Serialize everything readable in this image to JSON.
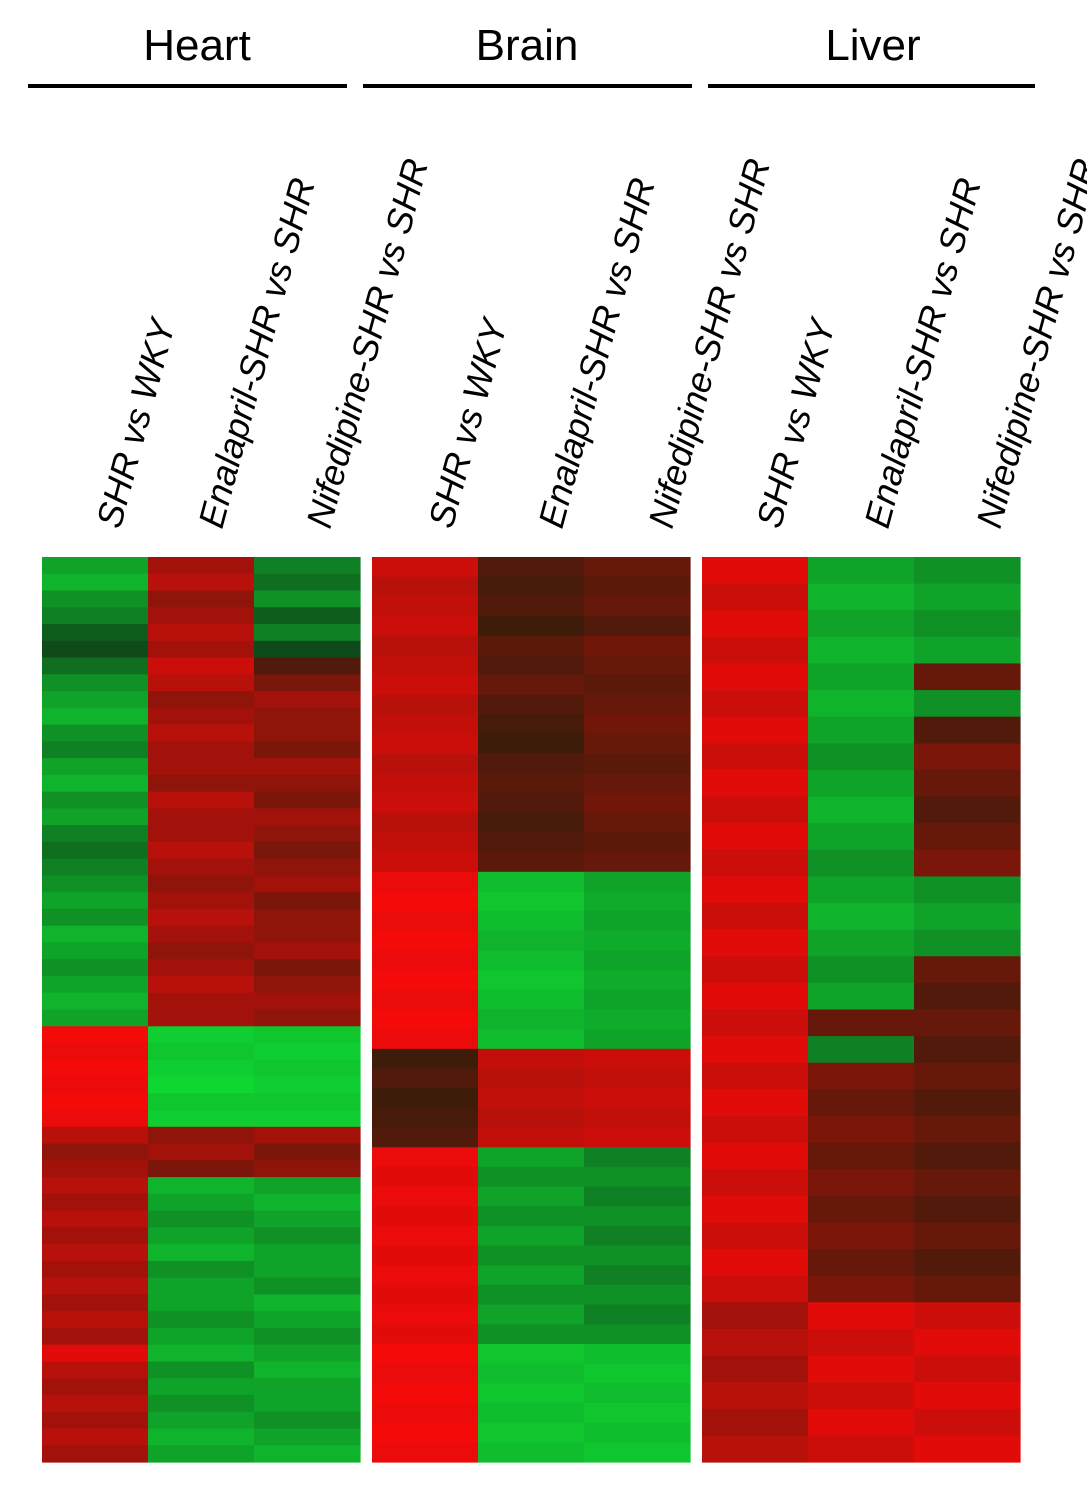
{
  "chart_data": {
    "type": "heatmap",
    "panels": [
      {
        "title": "Heart",
        "columns": [
          {
            "parts": [
              "SHR ",
              "vs",
              " WKY"
            ]
          },
          {
            "parts": [
              "Enalapril-SHR ",
              "vs",
              " SHR"
            ]
          },
          {
            "parts": [
              "Nifedipine-SHR ",
              "vs",
              " SHR"
            ]
          }
        ],
        "rows": [
          [
            -0.7,
            0.6,
            -0.5
          ],
          [
            -0.8,
            0.7,
            -0.4
          ],
          [
            -0.6,
            0.5,
            -0.6
          ],
          [
            -0.5,
            0.6,
            -0.3
          ],
          [
            -0.3,
            0.7,
            -0.5
          ],
          [
            -0.2,
            0.6,
            -0.2
          ],
          [
            -0.4,
            0.8,
            0.2
          ],
          [
            -0.6,
            0.7,
            0.4
          ],
          [
            -0.7,
            0.5,
            0.6
          ],
          [
            -0.8,
            0.6,
            0.5
          ],
          [
            -0.6,
            0.7,
            0.5
          ],
          [
            -0.5,
            0.6,
            0.4
          ],
          [
            -0.7,
            0.6,
            0.6
          ],
          [
            -0.8,
            0.5,
            0.5
          ],
          [
            -0.6,
            0.7,
            0.4
          ],
          [
            -0.7,
            0.6,
            0.6
          ],
          [
            -0.5,
            0.6,
            0.5
          ],
          [
            -0.4,
            0.7,
            0.4
          ],
          [
            -0.5,
            0.6,
            0.5
          ],
          [
            -0.6,
            0.5,
            0.6
          ],
          [
            -0.7,
            0.6,
            0.4
          ],
          [
            -0.6,
            0.7,
            0.5
          ],
          [
            -0.8,
            0.6,
            0.5
          ],
          [
            -0.7,
            0.5,
            0.6
          ],
          [
            -0.6,
            0.6,
            0.4
          ],
          [
            -0.7,
            0.7,
            0.5
          ],
          [
            -0.8,
            0.6,
            0.6
          ],
          [
            -0.7,
            0.6,
            0.5
          ],
          [
            1.0,
            -0.95,
            -0.9
          ],
          [
            0.95,
            -0.9,
            -0.95
          ],
          [
            1.0,
            -0.95,
            -0.9
          ],
          [
            0.95,
            -1.0,
            -0.95
          ],
          [
            1.0,
            -0.9,
            -0.9
          ],
          [
            0.95,
            -0.95,
            -0.95
          ],
          [
            0.7,
            0.5,
            0.6
          ],
          [
            0.5,
            0.6,
            0.4
          ],
          [
            0.6,
            0.4,
            0.5
          ],
          [
            0.7,
            -0.8,
            -0.7
          ],
          [
            0.6,
            -0.7,
            -0.8
          ],
          [
            0.7,
            -0.6,
            -0.7
          ],
          [
            0.6,
            -0.7,
            -0.6
          ],
          [
            0.7,
            -0.8,
            -0.7
          ],
          [
            0.6,
            -0.6,
            -0.7
          ],
          [
            0.7,
            -0.7,
            -0.6
          ],
          [
            0.6,
            -0.7,
            -0.8
          ],
          [
            0.7,
            -0.6,
            -0.7
          ],
          [
            0.6,
            -0.7,
            -0.6
          ],
          [
            0.9,
            -0.8,
            -0.7
          ],
          [
            0.7,
            -0.6,
            -0.8
          ],
          [
            0.6,
            -0.7,
            -0.7
          ],
          [
            0.7,
            -0.6,
            -0.7
          ],
          [
            0.6,
            -0.7,
            -0.6
          ],
          [
            0.7,
            -0.8,
            -0.7
          ],
          [
            0.6,
            -0.7,
            -0.8
          ]
        ]
      },
      {
        "title": "Brain",
        "columns": [
          {
            "parts": [
              "SHR ",
              "vs",
              " WKY"
            ]
          },
          {
            "parts": [
              "Enalapril-SHR ",
              "vs",
              " SHR"
            ]
          },
          {
            "parts": [
              "Nifedipine-SHR ",
              "vs",
              " SHR"
            ]
          }
        ],
        "rows": [
          [
            0.8,
            0.2,
            0.3
          ],
          [
            0.7,
            0.15,
            0.25
          ],
          [
            0.75,
            0.2,
            0.3
          ],
          [
            0.8,
            0.1,
            0.2
          ],
          [
            0.7,
            0.25,
            0.35
          ],
          [
            0.75,
            0.2,
            0.3
          ],
          [
            0.8,
            0.3,
            0.25
          ],
          [
            0.7,
            0.2,
            0.3
          ],
          [
            0.75,
            0.15,
            0.35
          ],
          [
            0.8,
            0.1,
            0.3
          ],
          [
            0.7,
            0.2,
            0.25
          ],
          [
            0.75,
            0.25,
            0.3
          ],
          [
            0.8,
            0.2,
            0.35
          ],
          [
            0.7,
            0.15,
            0.3
          ],
          [
            0.75,
            0.2,
            0.25
          ],
          [
            0.8,
            0.25,
            0.3
          ],
          [
            0.95,
            -0.85,
            -0.7
          ],
          [
            1.0,
            -0.9,
            -0.75
          ],
          [
            0.95,
            -0.85,
            -0.7
          ],
          [
            1.0,
            -0.8,
            -0.75
          ],
          [
            0.95,
            -0.85,
            -0.7
          ],
          [
            1.0,
            -0.9,
            -0.75
          ],
          [
            0.95,
            -0.85,
            -0.7
          ],
          [
            1.0,
            -0.8,
            -0.75
          ],
          [
            0.95,
            -0.85,
            -0.7
          ],
          [
            0.1,
            0.75,
            0.8
          ],
          [
            0.2,
            0.7,
            0.75
          ],
          [
            0.1,
            0.75,
            0.8
          ],
          [
            0.15,
            0.7,
            0.75
          ],
          [
            0.2,
            0.75,
            0.8
          ],
          [
            0.95,
            -0.7,
            -0.5
          ],
          [
            0.9,
            -0.6,
            -0.6
          ],
          [
            0.95,
            -0.7,
            -0.5
          ],
          [
            0.9,
            -0.6,
            -0.6
          ],
          [
            0.95,
            -0.7,
            -0.5
          ],
          [
            0.9,
            -0.6,
            -0.6
          ],
          [
            0.95,
            -0.7,
            -0.5
          ],
          [
            0.9,
            -0.6,
            -0.6
          ],
          [
            0.95,
            -0.7,
            -0.5
          ],
          [
            0.9,
            -0.6,
            -0.6
          ],
          [
            1.0,
            -0.9,
            -0.85
          ],
          [
            0.95,
            -0.85,
            -0.9
          ],
          [
            1.0,
            -0.9,
            -0.85
          ],
          [
            0.95,
            -0.85,
            -0.9
          ],
          [
            1.0,
            -0.9,
            -0.85
          ],
          [
            0.95,
            -0.85,
            -0.9
          ]
        ]
      },
      {
        "title": "Liver",
        "columns": [
          {
            "parts": [
              "SHR ",
              "vs",
              " WKY"
            ]
          },
          {
            "parts": [
              "Enalapril-SHR ",
              "vs",
              " SHR"
            ]
          },
          {
            "parts": [
              "Nifedipine-SHR ",
              "vs",
              " SHR"
            ]
          }
        ],
        "rows": [
          [
            0.9,
            -0.7,
            -0.6
          ],
          [
            0.8,
            -0.8,
            -0.7
          ],
          [
            0.9,
            -0.7,
            -0.6
          ],
          [
            0.8,
            -0.8,
            -0.7
          ],
          [
            0.9,
            -0.7,
            0.3
          ],
          [
            0.8,
            -0.8,
            -0.6
          ],
          [
            0.9,
            -0.7,
            0.2
          ],
          [
            0.8,
            -0.6,
            0.4
          ],
          [
            0.9,
            -0.7,
            0.3
          ],
          [
            0.8,
            -0.8,
            0.2
          ],
          [
            0.9,
            -0.7,
            0.3
          ],
          [
            0.8,
            -0.6,
            0.4
          ],
          [
            0.9,
            -0.7,
            -0.6
          ],
          [
            0.8,
            -0.8,
            -0.7
          ],
          [
            0.9,
            -0.7,
            -0.6
          ],
          [
            0.8,
            -0.6,
            0.3
          ],
          [
            0.9,
            -0.7,
            0.2
          ],
          [
            0.8,
            0.3,
            0.3
          ],
          [
            0.9,
            -0.5,
            0.2
          ],
          [
            0.8,
            0.4,
            0.3
          ],
          [
            0.9,
            0.3,
            0.2
          ],
          [
            0.8,
            0.4,
            0.3
          ],
          [
            0.9,
            0.3,
            0.2
          ],
          [
            0.8,
            0.4,
            0.3
          ],
          [
            0.9,
            0.3,
            0.2
          ],
          [
            0.8,
            0.4,
            0.3
          ],
          [
            0.9,
            0.3,
            0.2
          ],
          [
            0.8,
            0.4,
            0.3
          ],
          [
            0.6,
            0.9,
            0.8
          ],
          [
            0.7,
            0.8,
            0.9
          ],
          [
            0.6,
            0.9,
            0.8
          ],
          [
            0.7,
            0.8,
            0.9
          ],
          [
            0.6,
            0.9,
            0.8
          ],
          [
            0.7,
            0.8,
            0.9
          ]
        ]
      }
    ]
  }
}
